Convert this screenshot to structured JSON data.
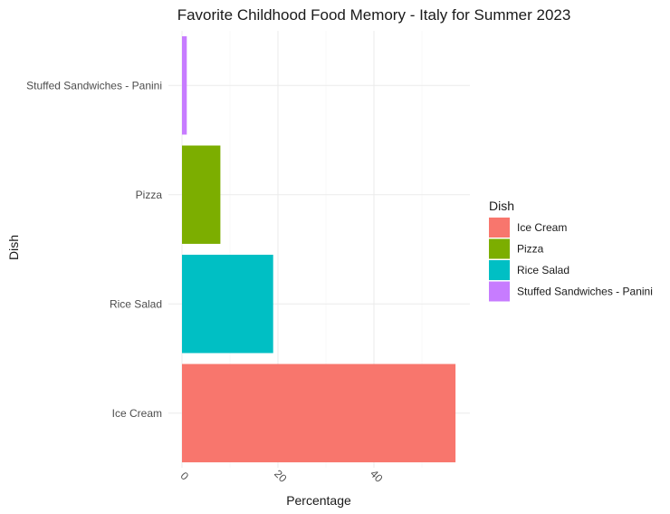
{
  "chart_data": {
    "type": "bar",
    "orientation": "horizontal",
    "title": "Favorite Childhood Food Memory - Italy for Summer 2023",
    "xlabel": "Percentage",
    "ylabel": "Dish",
    "categories": [
      "Ice Cream",
      "Rice Salad",
      "Pizza",
      "Stuffed Sandwiches - Panini"
    ],
    "values": [
      57,
      19,
      8,
      1
    ],
    "colors": [
      "#F8766D",
      "#7CAE00",
      "#00BFC4",
      "#C77CFF"
    ],
    "bar_colors": [
      "#F8766D",
      "#00BFC4",
      "#7CAE00",
      "#C77CFF"
    ],
    "xlim": [
      0,
      60
    ],
    "xticks": [
      0,
      20,
      40
    ],
    "xtick_labels": [
      "0",
      "20",
      "40"
    ],
    "grid": true,
    "legend": {
      "title": "Dish",
      "position": "right",
      "items": [
        "Ice Cream",
        "Pizza",
        "Rice Salad",
        "Stuffed Sandwiches - Panini"
      ]
    }
  }
}
